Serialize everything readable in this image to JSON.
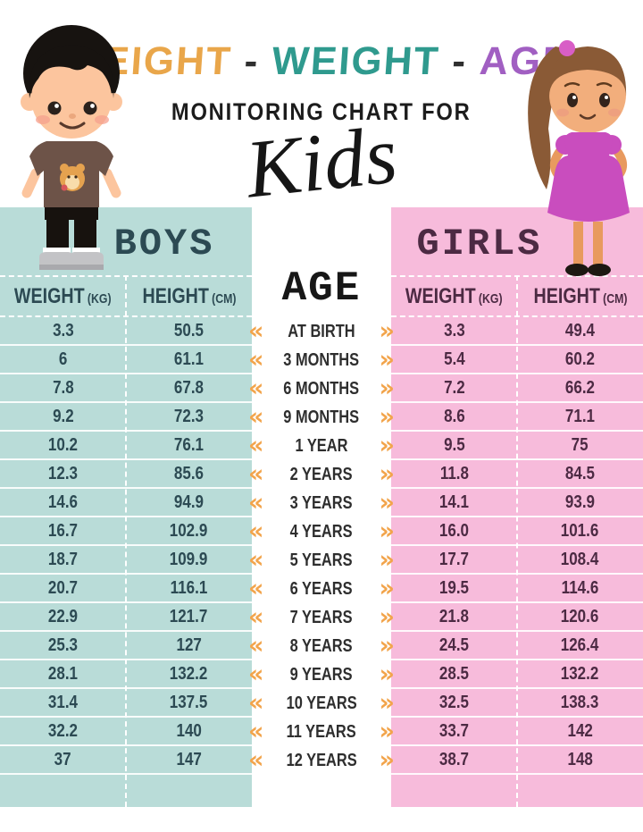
{
  "header": {
    "title_words": [
      {
        "text": "HEIGHT",
        "color": "#e9a64a"
      },
      {
        "text": "WEIGHT",
        "color": "#2f9a8e"
      },
      {
        "text": "AGE",
        "color": "#a15fc2"
      }
    ],
    "title_separator": "-",
    "subtitle": "MONITORING CHART FOR",
    "script_word": "Kids"
  },
  "boys": {
    "title": "BOYS",
    "weight_header": "WEIGHT",
    "weight_unit": "(KG)",
    "height_header": "HEIGHT",
    "height_unit": "(CM)",
    "accent_bg": "#b9dcd8",
    "text_color": "#2c4a53",
    "rows": [
      {
        "weight": "3.3",
        "height": "50.5"
      },
      {
        "weight": "6",
        "height": "61.1"
      },
      {
        "weight": "7.8",
        "height": "67.8"
      },
      {
        "weight": "9.2",
        "height": "72.3"
      },
      {
        "weight": "10.2",
        "height": "76.1"
      },
      {
        "weight": "12.3",
        "height": "85.6"
      },
      {
        "weight": "14.6",
        "height": "94.9"
      },
      {
        "weight": "16.7",
        "height": "102.9"
      },
      {
        "weight": "18.7",
        "height": "109.9"
      },
      {
        "weight": "20.7",
        "height": "116.1"
      },
      {
        "weight": "22.9",
        "height": "121.7"
      },
      {
        "weight": "25.3",
        "height": "127"
      },
      {
        "weight": "28.1",
        "height": "132.2"
      },
      {
        "weight": "31.4",
        "height": "137.5"
      },
      {
        "weight": "32.2",
        "height": "140"
      },
      {
        "weight": "37",
        "height": "147"
      }
    ]
  },
  "girls": {
    "title": "GIRLS",
    "weight_header": "WEIGHT",
    "weight_unit": "(KG)",
    "height_header": "HEIGHT",
    "height_unit": "(CM)",
    "accent_bg": "#f7bbdb",
    "text_color": "#4c2a43",
    "rows": [
      {
        "weight": "3.3",
        "height": "49.4"
      },
      {
        "weight": "5.4",
        "height": "60.2"
      },
      {
        "weight": "7.2",
        "height": "66.2"
      },
      {
        "weight": "8.6",
        "height": "71.1"
      },
      {
        "weight": "9.5",
        "height": "75"
      },
      {
        "weight": "11.8",
        "height": "84.5"
      },
      {
        "weight": "14.1",
        "height": "93.9"
      },
      {
        "weight": "16.0",
        "height": "101.6"
      },
      {
        "weight": "17.7",
        "height": "108.4"
      },
      {
        "weight": "19.5",
        "height": "114.6"
      },
      {
        "weight": "21.8",
        "height": "120.6"
      },
      {
        "weight": "24.5",
        "height": "126.4"
      },
      {
        "weight": "28.5",
        "height": "132.2"
      },
      {
        "weight": "32.5",
        "height": "138.3"
      },
      {
        "weight": "33.7",
        "height": "142"
      },
      {
        "weight": "38.7",
        "height": "148"
      }
    ]
  },
  "age_column": {
    "title": "AGE",
    "chevron_left": "«",
    "chevron_right": "»",
    "chevron_color": "#f2a44b",
    "labels": [
      "AT BIRTH",
      "3 MONTHS",
      "6 MONTHS",
      "9 MONTHS",
      "1 YEAR",
      "2 YEARS",
      "3 YEARS",
      "4 YEARS",
      "5 YEARS",
      "6 YEARS",
      "7 YEARS",
      "8 YEARS",
      "9 YEARS",
      "10 YEARS",
      "11 YEARS",
      "12 YEARS"
    ]
  },
  "chart_data": {
    "type": "table",
    "title": "HEIGHT - WEIGHT - AGE MONITORING CHART FOR Kids",
    "columns": [
      "Boys Weight (kg)",
      "Boys Height (cm)",
      "Age",
      "Girls Weight (kg)",
      "Girls Height (cm)"
    ],
    "rows": [
      [
        "3.3",
        "50.5",
        "AT BIRTH",
        "3.3",
        "49.4"
      ],
      [
        "6",
        "61.1",
        "3 MONTHS",
        "5.4",
        "60.2"
      ],
      [
        "7.8",
        "67.8",
        "6 MONTHS",
        "7.2",
        "66.2"
      ],
      [
        "9.2",
        "72.3",
        "9 MONTHS",
        "8.6",
        "71.1"
      ],
      [
        "10.2",
        "76.1",
        "1 YEAR",
        "9.5",
        "75"
      ],
      [
        "12.3",
        "85.6",
        "2 YEARS",
        "11.8",
        "84.5"
      ],
      [
        "14.6",
        "94.9",
        "3 YEARS",
        "14.1",
        "93.9"
      ],
      [
        "16.7",
        "102.9",
        "4 YEARS",
        "16.0",
        "101.6"
      ],
      [
        "18.7",
        "109.9",
        "5 YEARS",
        "17.7",
        "108.4"
      ],
      [
        "20.7",
        "116.1",
        "6 YEARS",
        "19.5",
        "114.6"
      ],
      [
        "22.9",
        "121.7",
        "7 YEARS",
        "21.8",
        "120.6"
      ],
      [
        "25.3",
        "127",
        "8 YEARS",
        "24.5",
        "126.4"
      ],
      [
        "28.1",
        "132.2",
        "9 YEARS",
        "28.5",
        "132.2"
      ],
      [
        "31.4",
        "137.5",
        "10 YEARS",
        "32.5",
        "138.3"
      ],
      [
        "32.2",
        "140",
        "11 YEARS",
        "33.7",
        "142"
      ],
      [
        "37",
        "147",
        "12 YEARS",
        "38.7",
        "148"
      ]
    ]
  }
}
